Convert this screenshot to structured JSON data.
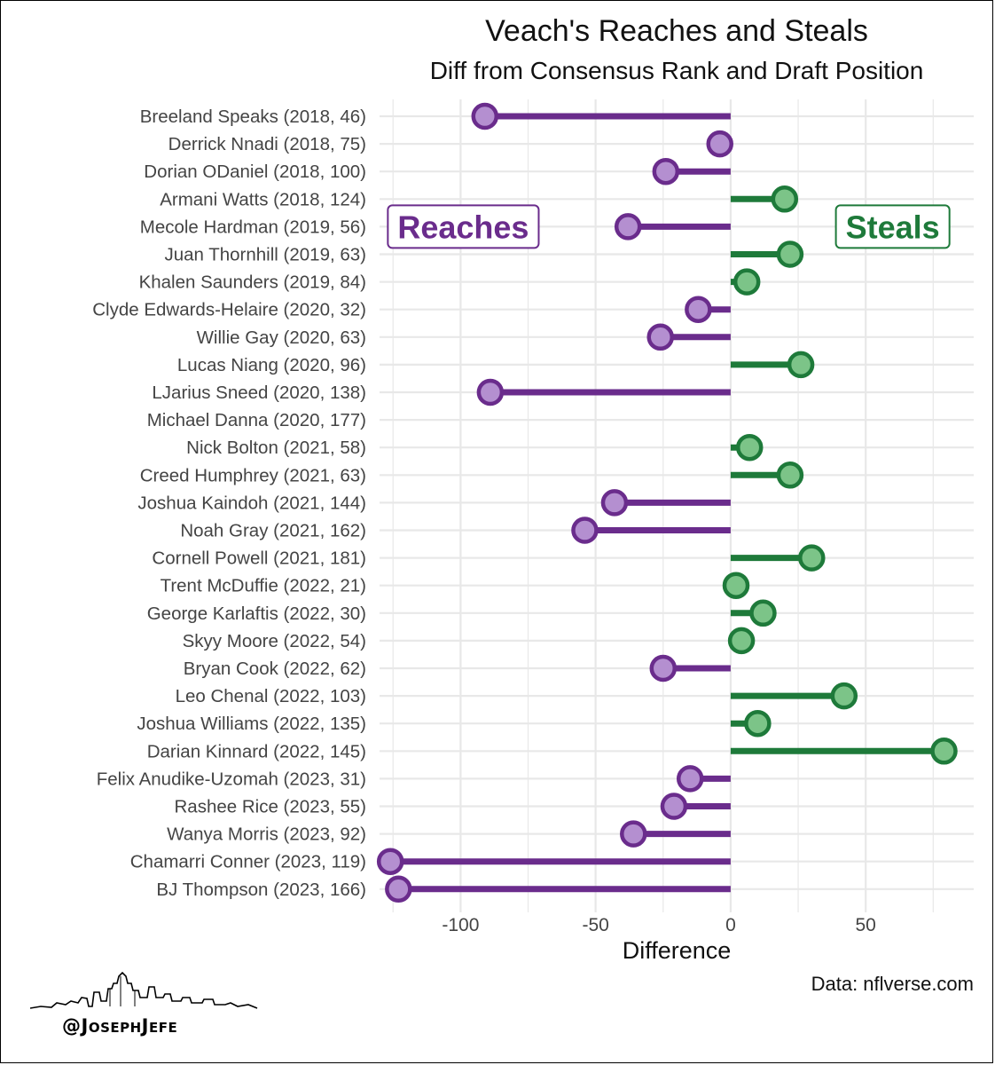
{
  "title": "Veach's Reaches and Steals",
  "subtitle": "Diff from Consensus Rank and Draft Position",
  "credit": "Data: nflverse.com",
  "handle": "@JosephJefe",
  "colors": {
    "reach_line": "#6a2c8c",
    "reach_fill": "#b48fd0",
    "steal_line": "#1e7a3a",
    "steal_fill": "#7cc488",
    "grid": "#e8e8e8"
  },
  "chart_data": {
    "type": "lollipop",
    "xlabel": "Difference",
    "xlim": [
      -130,
      90
    ],
    "xticks": [
      -100,
      -50,
      0,
      50
    ],
    "grid": true,
    "annotations": [
      {
        "text": "Reaches",
        "group": "reach",
        "x": -99,
        "row": 4
      },
      {
        "text": "Steals",
        "group": "steal",
        "x": 60,
        "row": 4
      }
    ],
    "categories": [
      "Breeland Speaks (2018, 46)",
      "Derrick Nnadi (2018, 75)",
      "Dorian ODaniel (2018, 100)",
      "Armani Watts (2018, 124)",
      "Mecole Hardman (2019, 56)",
      "Juan Thornhill (2019, 63)",
      "Khalen Saunders (2019, 84)",
      "Clyde Edwards-Helaire (2020, 32)",
      "Willie Gay (2020, 63)",
      "Lucas Niang (2020, 96)",
      "LJarius Sneed (2020, 138)",
      "Michael Danna (2020, 177)",
      "Nick Bolton (2021, 58)",
      "Creed Humphrey (2021, 63)",
      "Joshua Kaindoh (2021, 144)",
      "Noah Gray (2021, 162)",
      "Cornell Powell (2021, 181)",
      "Trent McDuffie (2022, 21)",
      "George Karlaftis (2022, 30)",
      "Skyy Moore (2022, 54)",
      "Bryan Cook (2022, 62)",
      "Leo Chenal (2022, 103)",
      "Joshua Williams (2022, 135)",
      "Darian Kinnard (2022, 145)",
      "Felix Anudike-Uzomah (2023, 31)",
      "Rashee Rice (2023, 55)",
      "Wanya Morris (2023, 92)",
      "Chamarri Conner (2023, 119)",
      "BJ Thompson (2023, 166)"
    ],
    "values": [
      -91,
      -4,
      -24,
      20,
      -38,
      22,
      6,
      -12,
      -26,
      26,
      -89,
      null,
      7,
      22,
      -43,
      -54,
      30,
      2,
      12,
      4,
      -25,
      42,
      10,
      79,
      -15,
      -21,
      -36,
      -126,
      -123
    ]
  }
}
